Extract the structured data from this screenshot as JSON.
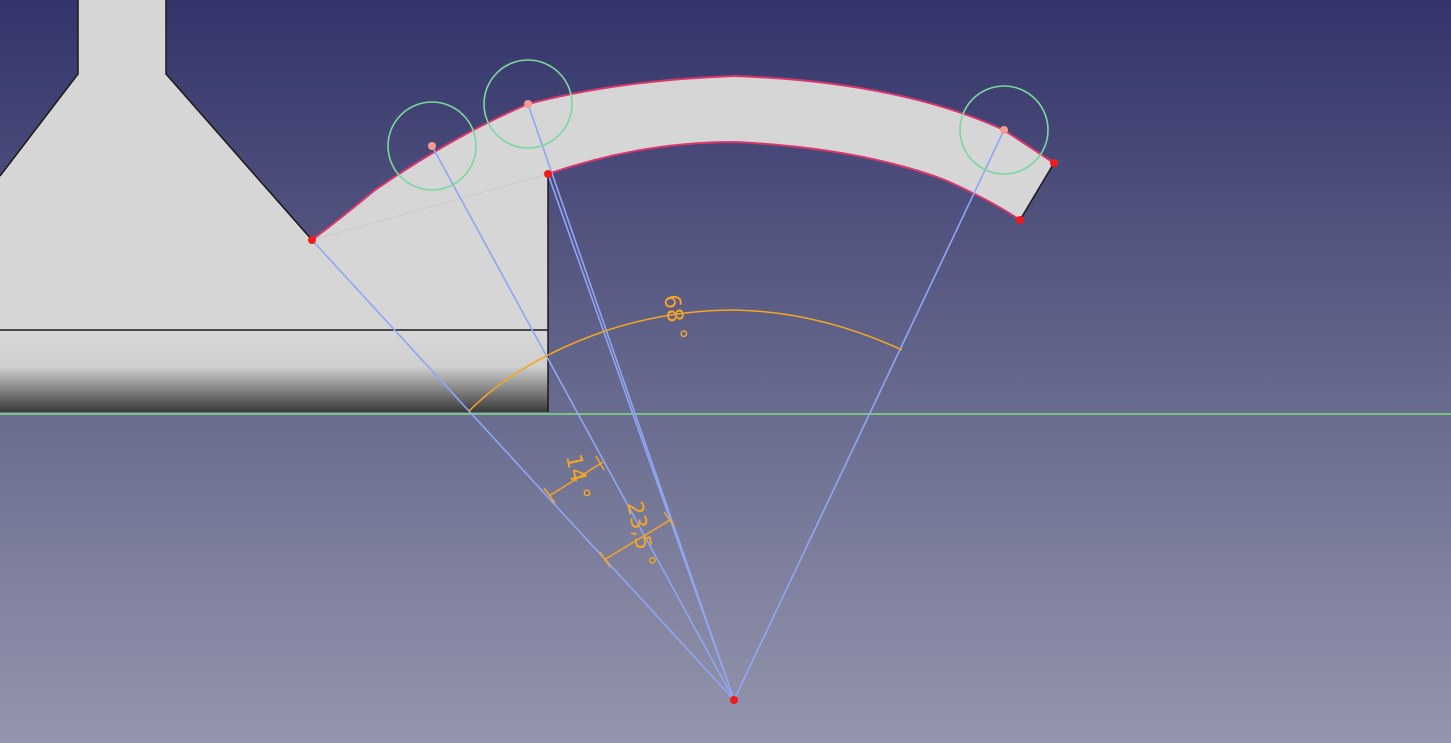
{
  "colors": {
    "background_top": "#33346a",
    "background_bottom": "#9496ad",
    "solid_face": "#d6d6d6",
    "solid_edge": "#1a1a1a",
    "sketch_edge": "#d8366e",
    "construction_line": "#8fa6f5",
    "dimension": "#f5a623",
    "horizontal_axis": "#7de37d",
    "vertex": "#f21a1a",
    "selected_vertex": "#f59b94",
    "constraint_circle": "#7cd6a0"
  },
  "dimensions": {
    "total_angle": "68 °",
    "angle_small": "14 °",
    "angle_medium": "23,5 °"
  },
  "icons": {
    "vertex": "point-icon",
    "constraint": "circle-icon"
  }
}
